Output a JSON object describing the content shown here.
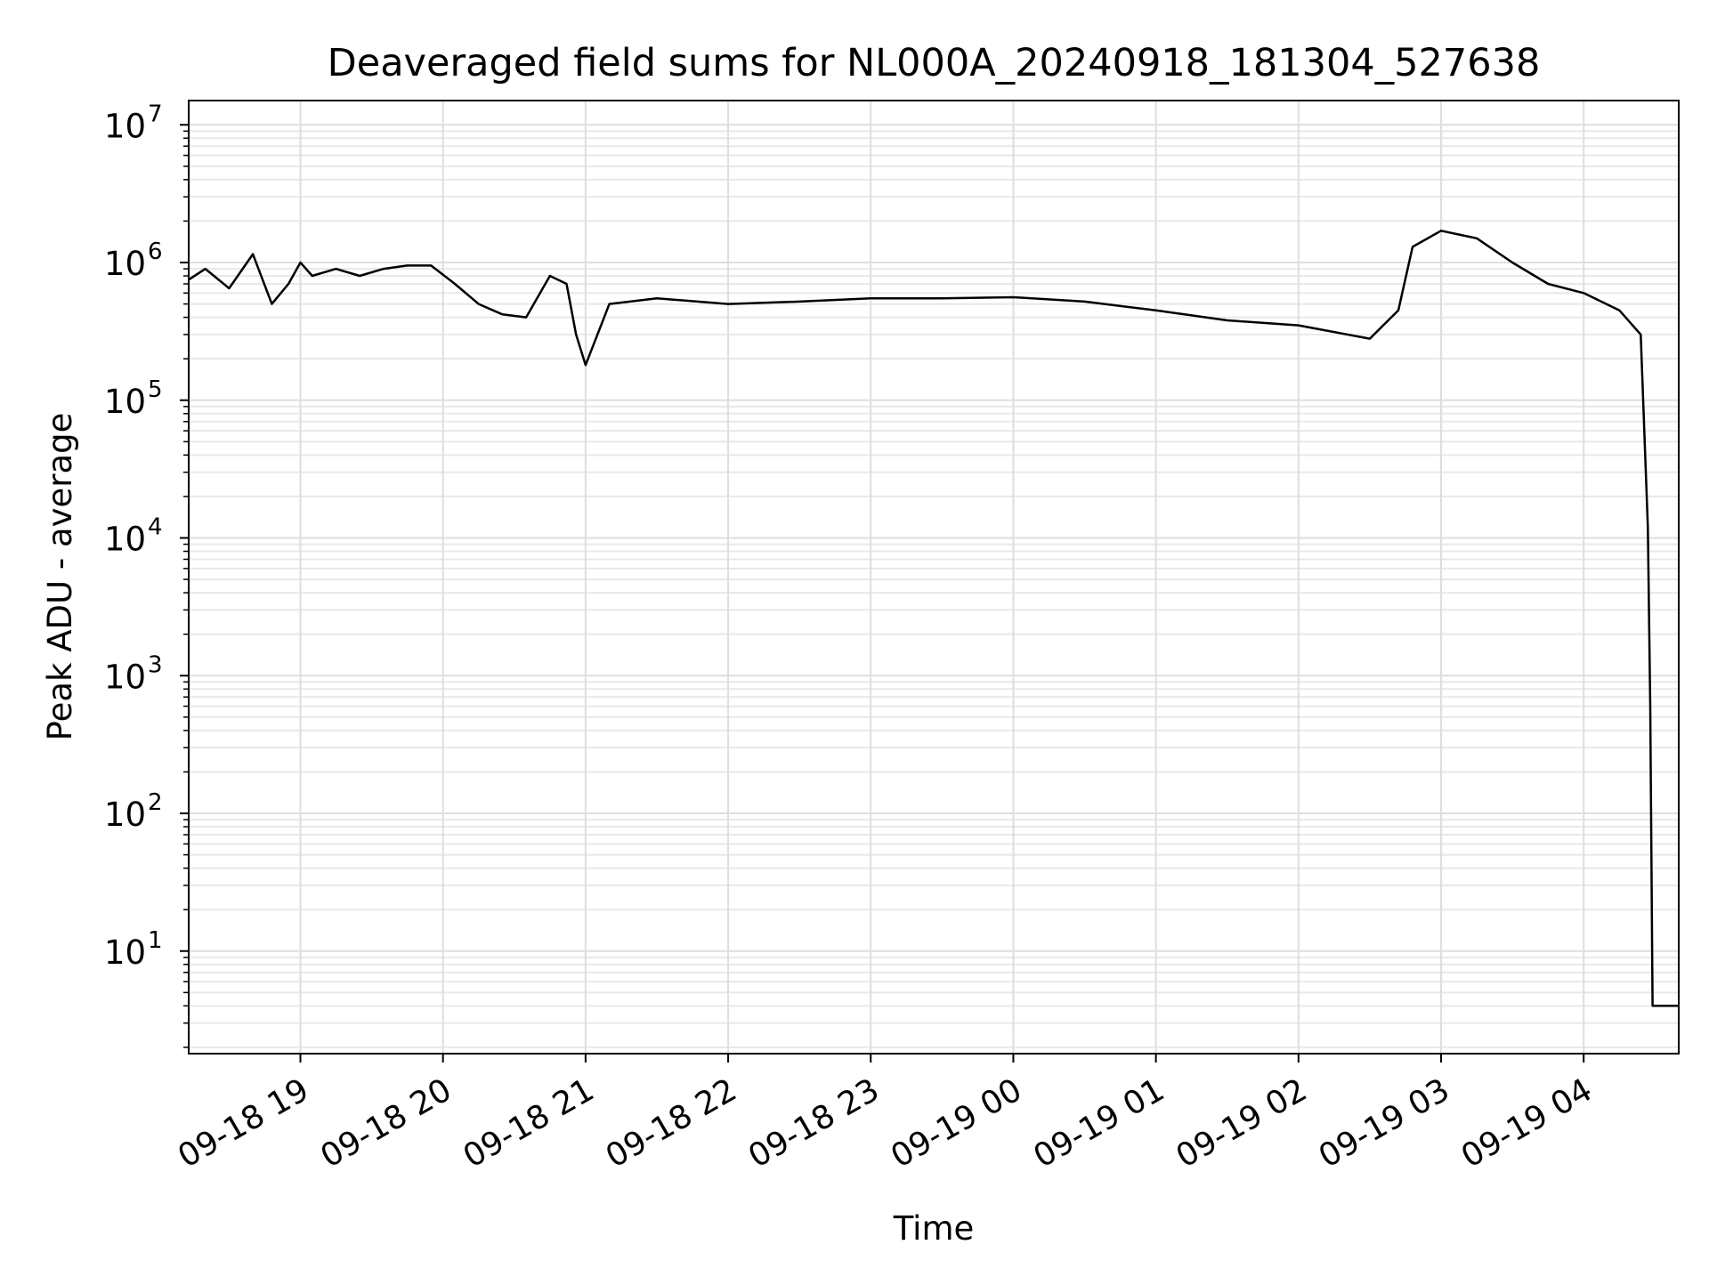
{
  "chart_data": {
    "type": "line",
    "title": "Deaveraged field sums for NL000A_20240918_181304_527638",
    "xlabel": "Time",
    "ylabel": "Peak ADU - average",
    "y_scale": "log",
    "xlim": [
      "09-18 18:13",
      "09-19 04:40"
    ],
    "ylim": [
      1.8,
      15000000
    ],
    "x_ticks": [
      "09-18 19",
      "09-18 20",
      "09-18 21",
      "09-18 22",
      "09-18 23",
      "09-19 00",
      "09-19 01",
      "09-19 02",
      "09-19 03",
      "09-19 04"
    ],
    "y_ticks": [
      {
        "base": "10",
        "exp": "1",
        "value": 10
      },
      {
        "base": "10",
        "exp": "2",
        "value": 100
      },
      {
        "base": "10",
        "exp": "3",
        "value": 1000
      },
      {
        "base": "10",
        "exp": "4",
        "value": 10000
      },
      {
        "base": "10",
        "exp": "5",
        "value": 100000
      },
      {
        "base": "10",
        "exp": "6",
        "value": 1000000
      },
      {
        "base": "10",
        "exp": "7",
        "value": 10000000
      }
    ],
    "grid": true,
    "series": [
      {
        "color": "#000000",
        "points": [
          [
            "09-18 18:13",
            750000
          ],
          [
            "09-18 18:20",
            900000
          ],
          [
            "09-18 18:30",
            650000
          ],
          [
            "09-18 18:40",
            1150000
          ],
          [
            "09-18 18:48",
            500000
          ],
          [
            "09-18 18:55",
            700000
          ],
          [
            "09-18 19:00",
            1000000
          ],
          [
            "09-18 19:05",
            800000
          ],
          [
            "09-18 19:15",
            900000
          ],
          [
            "09-18 19:25",
            800000
          ],
          [
            "09-18 19:35",
            900000
          ],
          [
            "09-18 19:45",
            950000
          ],
          [
            "09-18 19:55",
            950000
          ],
          [
            "09-18 20:05",
            700000
          ],
          [
            "09-18 20:15",
            500000
          ],
          [
            "09-18 20:25",
            420000
          ],
          [
            "09-18 20:35",
            400000
          ],
          [
            "09-18 20:45",
            800000
          ],
          [
            "09-18 20:52",
            700000
          ],
          [
            "09-18 20:56",
            300000
          ],
          [
            "09-18 21:00",
            180000
          ],
          [
            "09-18 21:10",
            500000
          ],
          [
            "09-18 21:30",
            550000
          ],
          [
            "09-18 22:00",
            500000
          ],
          [
            "09-18 22:30",
            520000
          ],
          [
            "09-18 23:00",
            550000
          ],
          [
            "09-18 23:30",
            550000
          ],
          [
            "09-19 00:00",
            560000
          ],
          [
            "09-19 00:30",
            520000
          ],
          [
            "09-19 01:00",
            450000
          ],
          [
            "09-19 01:30",
            380000
          ],
          [
            "09-19 02:00",
            350000
          ],
          [
            "09-19 02:30",
            280000
          ],
          [
            "09-19 02:42",
            450000
          ],
          [
            "09-19 02:48",
            1300000
          ],
          [
            "09-19 03:00",
            1700000
          ],
          [
            "09-19 03:15",
            1500000
          ],
          [
            "09-19 03:30",
            1000000
          ],
          [
            "09-19 03:45",
            700000
          ],
          [
            "09-19 04:00",
            600000
          ],
          [
            "09-19 04:15",
            450000
          ],
          [
            "09-19 04:24",
            300000
          ],
          [
            "09-19 04:27",
            12000
          ],
          [
            "09-19 04:28",
            600
          ],
          [
            "09-19 04:29",
            4
          ],
          [
            "09-19 04:40",
            4
          ]
        ]
      }
    ]
  }
}
